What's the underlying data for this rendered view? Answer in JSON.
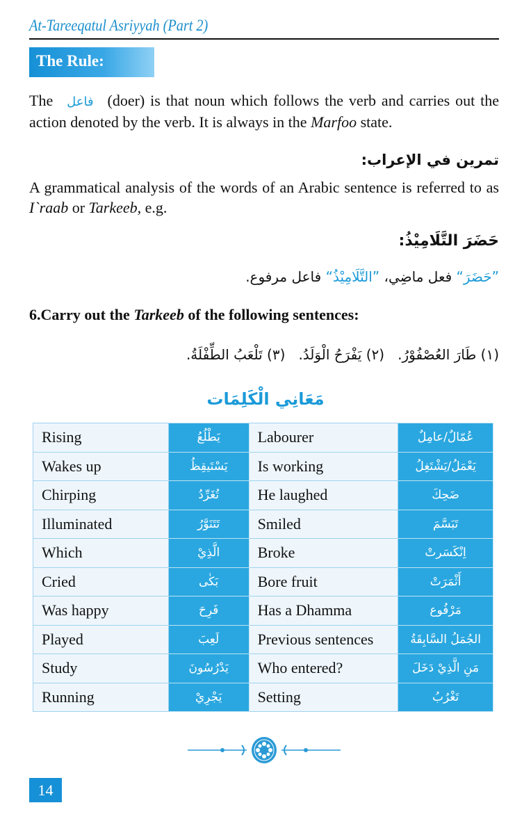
{
  "header": {
    "running_title": "At-Tareeqatul Asriyyah (Part 2)"
  },
  "rule": {
    "label": "The Rule:",
    "text_before": "The",
    "arabic_term": "فاعل",
    "text_after": "(doer) is that noun which follows the verb and carries out the action denoted by the verb. It is always in the",
    "italic_term": "Marfoo",
    "text_end": "state."
  },
  "irab": {
    "heading": "تمرين في الإعراب:",
    "text_before": "A grammatical analysis of the words of an Arabic sentence is referred to as",
    "term1": "I`raab",
    "or": "or",
    "term2": "Tarkeeb",
    "text_end": ", e.g.",
    "example_sentence": "حَضَرَ التَّلَامِيْذُ:",
    "analysis_word1": "”حَضَرَ“",
    "analysis_part1": "فعل ماضِي،",
    "analysis_word2": "”التَّلَامِيْذُ“",
    "analysis_part2": "فاعل مرفوع."
  },
  "exercise": {
    "number_prefix": "6.Carry out the",
    "italic_term": "Tarkeeb",
    "suffix": "of the following sentences:",
    "sentences": "(١) طَارَ العُصْفُوْرُ.   (٢) يَفْرَحُ الْوَلَدُ.   (٣) تَلْعَبُ الطِّفْلَةُ."
  },
  "vocabulary": {
    "heading": "مَعَانِي الْكَلِمَات",
    "rows": [
      {
        "en1": "Rising",
        "ar1": "يَطْلُعُ",
        "en2": "Labourer",
        "ar2": "عُمّالٌ/عامِلٌ"
      },
      {
        "en1": "Wakes up",
        "ar1": "يَسْتَيقِظُ",
        "en2": "Is working",
        "ar2": "يَعْمَلُ/يَشْتَغِلُ"
      },
      {
        "en1": "Chirping",
        "ar1": "تُغَرِّدُ",
        "en2": "He laughed",
        "ar2": "ضَحِكَ"
      },
      {
        "en1": "Illuminated",
        "ar1": "تَتَنَوَّرُ",
        "en2": "Smiled",
        "ar2": "تَبَسَّمَ"
      },
      {
        "en1": "Which",
        "ar1": "الَّذِيْ",
        "en2": "Broke",
        "ar2": "اِنْكَسَرتْ"
      },
      {
        "en1": "Cried",
        "ar1": "بَكٰى",
        "en2": "Bore fruit",
        "ar2": "أَثْمَرَتْ"
      },
      {
        "en1": "Was happy",
        "ar1": "فَرِحَ",
        "en2": "Has a Dhamma",
        "ar2": "مَرْفُوع"
      },
      {
        "en1": "Played",
        "ar1": "لَعِبَ",
        "en2": "Previous sentences",
        "ar2": "الجُمَلُ السَّابِقَةُ"
      },
      {
        "en1": "Study",
        "ar1": "يَدْرُسُونَ",
        "en2": "Who entered?",
        "ar2": "مَنِ الَّذِيْ دَخَلَ"
      },
      {
        "en1": "Running",
        "ar1": "يَجْرِيْ",
        "en2": "Setting",
        "ar2": "تَغْرُبُ"
      }
    ]
  },
  "footer": {
    "page_number": "14",
    "ornament_icon": "floral-divider-icon"
  },
  "colors": {
    "accent": "#1b9ad8",
    "table_arabic_bg": "#2aa7e0",
    "table_english_bg": "#eef6fc"
  }
}
